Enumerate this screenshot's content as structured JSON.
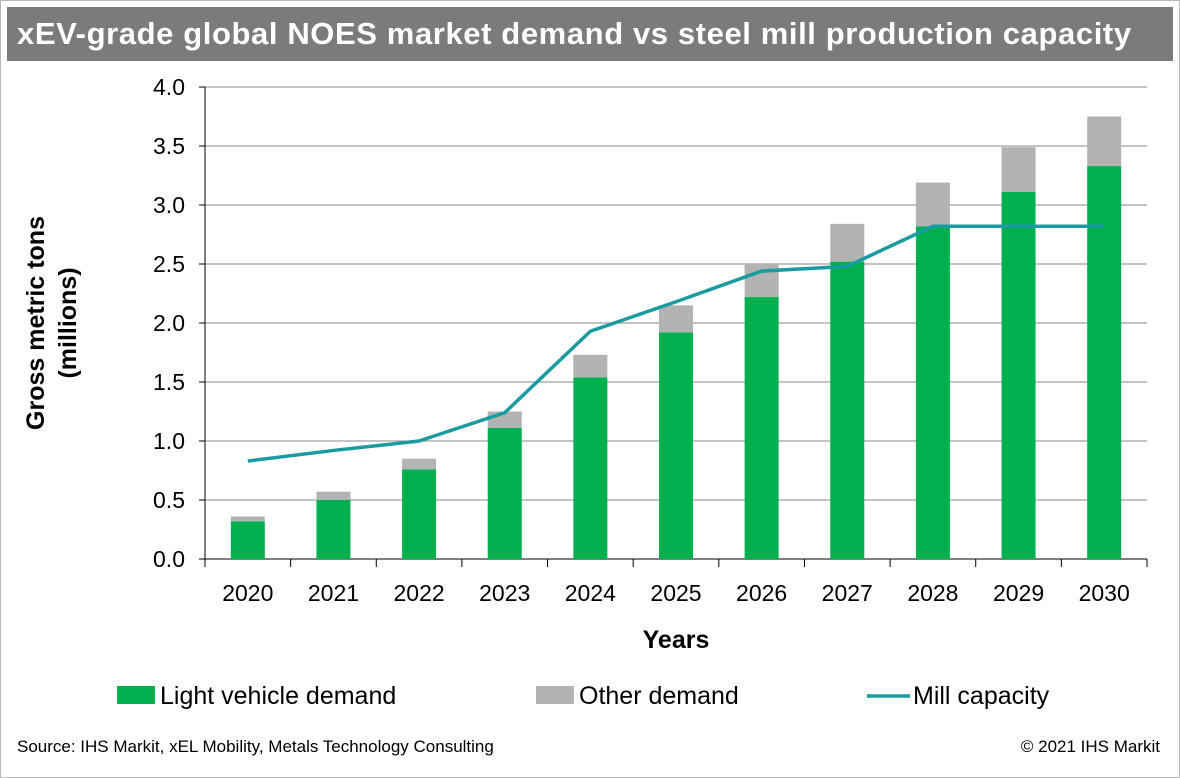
{
  "header": {
    "title": "xEV-grade global NOES market demand vs steel mill production capacity"
  },
  "footer": {
    "source": "Source: IHS Markit, xEL Mobility, Metals Technology Consulting",
    "copyright": "© 2021 IHS Markit"
  },
  "colors": {
    "title_bar": "#7b7b7b",
    "light_vehicle": "#00b04f",
    "other": "#b3b3b3",
    "mill_capacity": "#1a9ba1",
    "grid": "#888888"
  },
  "chart_data": {
    "type": "bar",
    "stacked": true,
    "title": "xEV-grade global NOES market demand vs steel mill production capacity",
    "xlabel": "Years",
    "ylabel": [
      "Gross metric tons",
      "(millions)"
    ],
    "ylim": [
      0,
      4.0
    ],
    "yticks": [
      "0.0",
      "0.5",
      "1.0",
      "1.5",
      "2.0",
      "2.5",
      "3.0",
      "3.5",
      "4.0"
    ],
    "grid": true,
    "legend_position": "bottom",
    "categories": [
      "2020",
      "2021",
      "2022",
      "2023",
      "2024",
      "2025",
      "2026",
      "2027",
      "2028",
      "2029",
      "2030"
    ],
    "series": [
      {
        "name": "Light vehicle demand",
        "kind": "bar",
        "color": "#00b04f",
        "values": [
          0.32,
          0.5,
          0.76,
          1.11,
          1.54,
          1.92,
          2.22,
          2.52,
          2.82,
          3.11,
          3.33
        ]
      },
      {
        "name": "Other demand",
        "kind": "bar",
        "color": "#b3b3b3",
        "values": [
          0.04,
          0.07,
          0.09,
          0.14,
          0.19,
          0.23,
          0.28,
          0.32,
          0.37,
          0.38,
          0.42
        ]
      },
      {
        "name": "Mill capacity",
        "kind": "line",
        "color": "#1a9ba1",
        "values": [
          0.83,
          0.92,
          1.0,
          1.24,
          1.93,
          2.18,
          2.44,
          2.48,
          2.82,
          2.82,
          2.82
        ]
      }
    ]
  }
}
